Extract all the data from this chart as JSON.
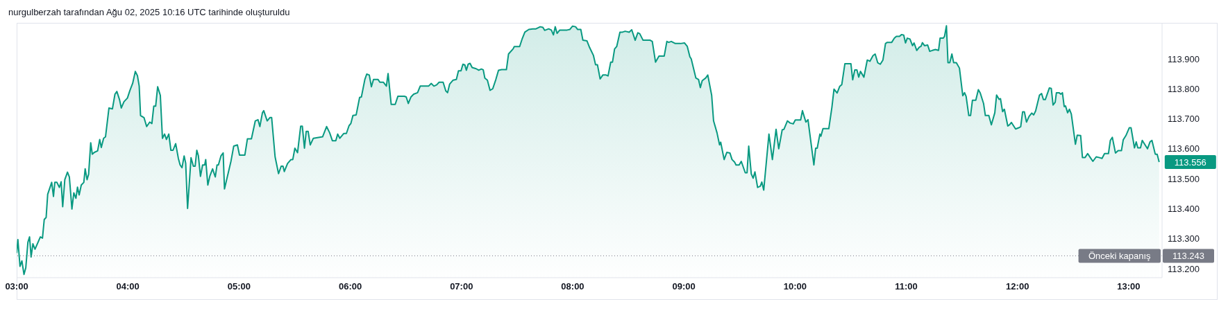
{
  "chart_data": {
    "type": "area",
    "title": "nurgulberzah tarafından Ağu 02, 2025 10:16 UTC tarihinde oluşturuldu",
    "color": "#089981",
    "x": [
      3.0,
      3.011,
      3.03,
      3.047,
      3.066,
      3.082,
      3.101,
      3.116,
      3.13,
      3.146,
      3.165,
      3.213,
      3.232,
      3.248,
      3.265,
      3.279,
      3.315,
      3.331,
      3.343,
      3.362,
      3.384,
      3.4,
      3.414,
      3.433,
      3.457,
      3.474,
      3.497,
      3.514,
      3.533,
      3.547,
      3.562,
      3.581,
      3.604,
      3.616,
      3.633,
      3.647,
      3.666,
      3.68,
      3.699,
      3.728,
      3.747,
      3.761,
      3.782,
      3.799,
      3.83,
      3.861,
      3.884,
      3.901,
      3.925,
      3.941,
      3.965,
      3.996,
      4.019,
      4.043,
      4.067,
      4.086,
      4.102,
      4.114,
      4.145,
      4.169,
      4.197,
      4.216,
      4.233,
      4.25,
      4.268,
      4.292,
      4.311,
      4.33,
      4.347,
      4.368,
      4.387,
      4.406,
      4.43,
      4.454,
      4.47,
      4.487,
      4.506,
      4.52,
      4.537,
      4.568,
      4.589,
      4.605,
      4.62,
      4.634,
      4.653,
      4.672,
      4.691,
      4.7,
      4.719,
      4.738,
      4.762,
      4.786,
      4.802,
      4.814,
      4.838,
      4.857,
      4.869,
      4.928,
      4.952,
      4.985,
      5.004,
      5.052,
      5.075,
      5.111,
      5.146,
      5.17,
      5.187,
      5.21,
      5.222,
      5.253,
      5.277,
      5.293,
      5.324,
      5.355,
      5.379,
      5.395,
      5.407,
      5.436,
      5.467,
      5.483,
      5.502,
      5.526,
      5.554,
      5.569,
      5.588,
      5.604,
      5.621,
      5.64,
      5.668,
      5.751,
      5.787,
      5.815,
      5.839,
      5.87,
      5.887,
      5.906,
      5.941,
      5.965,
      5.989,
      6.005,
      6.024,
      6.053,
      6.084,
      6.1,
      6.131,
      6.148,
      6.171,
      6.19,
      6.209,
      6.25,
      6.266,
      6.297,
      6.325,
      6.34,
      6.368,
      6.404,
      6.428,
      6.487,
      6.503,
      6.522,
      6.546,
      6.57,
      6.605,
      6.629,
      6.704,
      6.728,
      6.752,
      6.776,
      6.799,
      6.835,
      6.859,
      6.875,
      6.894,
      6.925,
      6.954,
      6.973,
      6.996,
      7.013,
      7.03,
      7.044,
      7.06,
      7.077,
      7.096,
      7.132,
      7.155,
      7.179,
      7.196,
      7.21,
      7.233,
      7.257,
      7.281,
      7.309,
      7.333,
      7.361,
      7.404,
      7.423,
      7.464,
      7.475,
      7.523,
      7.547,
      7.57,
      7.606,
      7.641,
      7.67,
      7.708,
      7.732,
      7.748,
      7.784,
      7.808,
      7.827,
      7.843,
      7.86,
      7.884,
      7.95,
      7.974,
      7.998,
      8.026,
      8.045,
      8.073,
      8.092,
      8.128,
      8.152,
      8.187,
      8.206,
      8.223,
      8.247,
      8.271,
      8.301,
      8.318,
      8.342,
      8.358,
      8.377,
      8.396,
      8.425,
      8.448,
      8.472,
      8.508,
      8.531,
      8.562,
      8.586,
      8.603,
      8.633,
      8.697,
      8.716,
      8.745,
      8.776,
      8.823,
      8.847,
      8.864,
      8.887,
      8.923,
      8.97,
      9.006,
      9.03,
      9.054,
      9.066,
      9.108,
      9.132,
      9.148,
      9.165,
      9.196,
      9.215,
      9.25,
      9.267,
      9.298,
      9.321,
      9.331,
      9.362,
      9.386,
      9.414,
      9.433,
      9.457,
      9.469,
      9.497,
      9.516,
      9.552,
      9.568,
      9.583,
      9.606,
      9.623,
      9.639,
      9.663,
      9.687,
      9.701,
      9.718,
      9.765,
      9.796,
      9.829,
      9.853,
      9.884,
      9.9,
      9.931,
      9.955,
      9.983,
      10.002,
      10.05,
      10.066,
      10.097,
      10.116,
      10.169,
      10.185,
      10.199,
      10.223,
      10.232,
      10.251,
      10.287,
      10.303,
      10.331,
      10.35,
      10.378,
      10.401,
      10.42,
      10.448,
      10.502,
      10.518,
      10.537,
      10.556,
      10.572,
      10.588,
      10.619,
      10.649,
      10.673,
      10.701,
      10.72,
      10.743,
      10.766,
      10.79,
      10.813,
      10.829,
      10.869,
      10.893,
      10.911,
      10.939,
      10.958,
      10.977,
      10.993,
      11.009,
      11.033,
      11.056,
      11.07,
      11.094,
      11.117,
      11.133,
      11.145,
      11.164,
      11.192,
      11.211,
      11.234,
      11.262,
      11.29,
      11.304,
      11.332,
      11.344,
      11.361,
      11.375,
      11.391,
      11.41,
      11.426,
      11.45,
      11.478,
      11.508,
      11.524,
      11.538,
      11.562,
      11.578,
      11.595,
      11.625,
      11.648,
      11.665,
      11.695,
      11.711,
      11.742,
      11.765,
      11.796,
      11.812,
      11.835,
      11.847,
      11.866,
      11.882,
      11.913,
      11.929,
      11.945,
      11.983,
      12.011,
      12.029,
      12.046,
      12.062,
      12.081,
      12.104,
      12.128,
      12.146,
      12.163,
      12.198,
      12.217,
      12.233,
      12.25,
      12.287,
      12.304,
      12.32,
      12.339,
      12.35,
      12.374,
      12.39,
      12.404,
      12.42,
      12.432,
      12.451,
      12.467,
      12.484,
      12.521,
      12.537,
      12.568,
      12.584,
      12.608,
      12.631,
      12.654,
      12.678,
      12.708,
      12.732,
      12.76,
      12.783,
      12.818,
      12.835,
      12.853,
      12.881,
      12.905,
      12.935,
      12.951,
      12.975,
      13.005,
      13.021,
      13.052,
      13.068,
      13.082,
      13.106,
      13.122,
      13.169,
      13.192,
      13.209,
      13.239,
      13.256,
      13.274
    ],
    "values": [
      113.252,
      113.297,
      113.208,
      113.226,
      113.181,
      113.203,
      113.288,
      113.306,
      113.239,
      113.283,
      113.265,
      113.306,
      113.302,
      113.364,
      113.371,
      113.448,
      113.488,
      113.441,
      113.488,
      113.488,
      113.471,
      113.49,
      113.407,
      113.497,
      113.522,
      113.506,
      113.399,
      113.453,
      113.435,
      113.472,
      113.446,
      113.479,
      113.488,
      113.533,
      113.497,
      113.515,
      113.62,
      113.582,
      113.588,
      113.593,
      113.631,
      113.604,
      113.635,
      113.64,
      113.736,
      113.733,
      113.782,
      113.791,
      113.764,
      113.736,
      113.757,
      113.769,
      113.795,
      113.818,
      113.858,
      113.844,
      113.809,
      113.711,
      113.704,
      113.674,
      113.689,
      113.684,
      113.742,
      113.742,
      113.807,
      113.778,
      113.635,
      113.649,
      113.631,
      113.649,
      113.595,
      113.595,
      113.617,
      113.568,
      113.546,
      113.537,
      113.576,
      113.552,
      113.401,
      113.57,
      113.542,
      113.542,
      113.595,
      113.577,
      113.508,
      113.546,
      113.546,
      113.564,
      113.479,
      113.51,
      113.533,
      113.506,
      113.546,
      113.546,
      113.577,
      113.586,
      113.466,
      113.56,
      113.609,
      113.613,
      113.579,
      113.579,
      113.633,
      113.633,
      113.693,
      113.697,
      113.674,
      113.72,
      113.727,
      113.693,
      113.704,
      113.704,
      113.573,
      113.517,
      113.542,
      113.542,
      113.524,
      113.551,
      113.564,
      113.564,
      113.602,
      113.587,
      113.675,
      113.675,
      113.602,
      113.658,
      113.658,
      113.613,
      113.635,
      113.64,
      113.674,
      113.653,
      113.627,
      113.627,
      113.649,
      113.635,
      113.651,
      113.651,
      113.677,
      113.684,
      113.711,
      113.713,
      113.771,
      113.773,
      113.831,
      113.849,
      113.846,
      113.807,
      113.831,
      113.831,
      113.822,
      113.822,
      113.809,
      113.851,
      113.748,
      113.748,
      113.775,
      113.775,
      113.773,
      113.751,
      113.773,
      113.782,
      113.787,
      113.809,
      113.809,
      113.818,
      113.809,
      113.813,
      113.822,
      113.822,
      113.793,
      113.787,
      113.816,
      113.829,
      113.831,
      113.86,
      113.86,
      113.882,
      113.88,
      113.862,
      113.882,
      113.885,
      113.871,
      113.867,
      113.862,
      113.866,
      113.863,
      113.836,
      113.829,
      113.795,
      113.8,
      113.831,
      113.862,
      113.864,
      113.864,
      113.916,
      113.933,
      113.941,
      113.941,
      113.968,
      113.989,
      113.998,
      114.0,
      114.0,
      114.007,
      114.005,
      113.995,
      114.0,
      113.996,
      113.98,
      114.007,
      113.985,
      113.996,
      113.996,
      113.998,
      114.009,
      114.007,
      113.998,
      113.998,
      113.962,
      113.96,
      113.938,
      113.911,
      113.88,
      113.88,
      113.833,
      113.846,
      113.846,
      113.843,
      113.889,
      113.889,
      113.933,
      113.941,
      113.989,
      113.989,
      113.992,
      113.989,
      113.997,
      113.962,
      113.987,
      113.984,
      113.962,
      113.962,
      113.958,
      113.889,
      113.909,
      113.909,
      113.958,
      113.955,
      113.958,
      113.951,
      113.951,
      113.953,
      113.942,
      113.907,
      113.9,
      113.836,
      113.831,
      113.804,
      113.827,
      113.836,
      113.846,
      113.778,
      113.693,
      113.653,
      113.613,
      113.622,
      113.564,
      113.588,
      113.586,
      113.564,
      113.555,
      113.546,
      113.546,
      113.558,
      113.52,
      113.52,
      113.609,
      113.516,
      113.502,
      113.523,
      113.471,
      113.475,
      113.489,
      113.462,
      113.649,
      113.564,
      113.665,
      113.6,
      113.663,
      113.665,
      113.693,
      113.686,
      113.683,
      113.696,
      113.696,
      113.727,
      113.689,
      113.697,
      113.546,
      113.602,
      113.602,
      113.649,
      113.642,
      113.667,
      113.667,
      113.667,
      113.738,
      113.799,
      113.786,
      113.808,
      113.814,
      113.884,
      113.884,
      113.83,
      113.863,
      113.863,
      113.839,
      113.858,
      113.839,
      113.896,
      113.892,
      113.911,
      113.916,
      113.887,
      113.882,
      113.896,
      113.951,
      113.955,
      113.955,
      113.969,
      113.975,
      113.975,
      113.981,
      113.979,
      113.953,
      113.969,
      113.966,
      113.944,
      113.953,
      113.928,
      113.939,
      113.942,
      113.954,
      113.944,
      113.946,
      113.925,
      113.928,
      113.931,
      113.928,
      113.969,
      113.969,
      113.975,
      114.01,
      113.887,
      113.887,
      113.916,
      113.887,
      113.887,
      113.869,
      113.777,
      113.787,
      113.775,
      113.711,
      113.711,
      113.762,
      113.762,
      113.797,
      113.786,
      113.751,
      113.711,
      113.711,
      113.68,
      113.72,
      113.779,
      113.765,
      113.767,
      113.724,
      113.732,
      113.676,
      113.68,
      113.688,
      113.666,
      113.67,
      113.674,
      113.723,
      113.723,
      113.689,
      113.708,
      113.719,
      113.713,
      113.726,
      113.779,
      113.784,
      113.764,
      113.764,
      113.803,
      113.801,
      113.746,
      113.755,
      113.787,
      113.787,
      113.782,
      113.787,
      113.741,
      113.743,
      113.72,
      113.732,
      113.716,
      113.615,
      113.645,
      113.644,
      113.571,
      113.571,
      113.584,
      113.571,
      113.558,
      113.573,
      113.571,
      113.568,
      113.584,
      113.584,
      113.628,
      113.638,
      113.586,
      113.594,
      113.594,
      113.63,
      113.644,
      113.67,
      113.67,
      113.603,
      113.623,
      113.603,
      113.603,
      113.628,
      113.6,
      113.623,
      113.628,
      113.582,
      113.582,
      113.556
    ],
    "xlim": [
      3,
      13.3
    ],
    "xticks": [
      {
        "value": 3,
        "label": "03:00"
      },
      {
        "value": 4,
        "label": "04:00"
      },
      {
        "value": 5,
        "label": "05:00"
      },
      {
        "value": 6,
        "label": "06:00"
      },
      {
        "value": 7,
        "label": "07:00"
      },
      {
        "value": 8,
        "label": "08:00"
      },
      {
        "value": 9,
        "label": "09:00"
      },
      {
        "value": 10,
        "label": "10:00"
      },
      {
        "value": 11,
        "label": "11:00"
      },
      {
        "value": 12,
        "label": "12:00"
      },
      {
        "value": 13,
        "label": "13:00"
      }
    ],
    "ylim": [
      113.17,
      114.02
    ],
    "yticks": [
      {
        "value": 113.2,
        "label": "113.200"
      },
      {
        "value": 113.3,
        "label": "113.300"
      },
      {
        "value": 113.4,
        "label": "113.400"
      },
      {
        "value": 113.5,
        "label": "113.500"
      },
      {
        "value": 113.6,
        "label": "113.600"
      },
      {
        "value": 113.7,
        "label": "113.700"
      },
      {
        "value": 113.8,
        "label": "113.800"
      },
      {
        "value": 113.9,
        "label": "113.900"
      }
    ],
    "ref_lines": [
      {
        "axis": "y",
        "value": 113.243,
        "label": "Önceki kapanış",
        "color": "#787b86",
        "line_style": "dotted"
      }
    ],
    "annotations": [
      {
        "text": "113.556",
        "x": 13.274,
        "y": 113.556
      },
      "113.243"
    ]
  }
}
